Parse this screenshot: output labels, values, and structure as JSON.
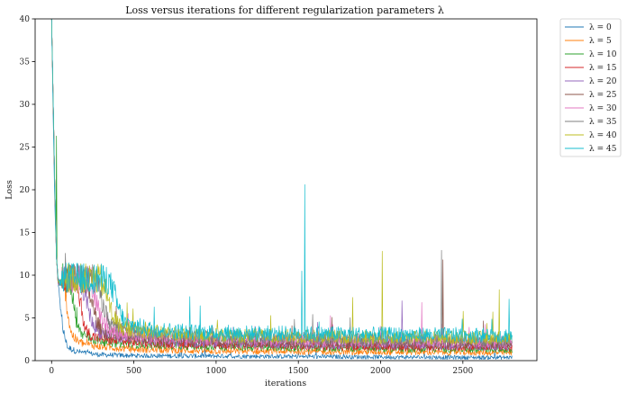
{
  "chart_data": {
    "type": "line",
    "title": "Loss versus iterations for different regularization parameters λ",
    "xlabel": "iterations",
    "ylabel": "Loss",
    "xlim": [
      -100,
      2950
    ],
    "ylim": [
      0,
      40
    ],
    "xticks": [
      0,
      500,
      1000,
      1500,
      2000,
      2500
    ],
    "yticks": [
      0,
      5,
      10,
      15,
      20,
      25,
      30,
      35,
      40
    ],
    "grid": false,
    "legend_position": "outside-top-right",
    "series": [
      {
        "name": "λ = 0",
        "lambda": 0,
        "color": "#1f77b4",
        "points": [
          [
            0,
            40
          ],
          [
            10,
            28
          ],
          [
            20,
            18
          ],
          [
            30,
            12
          ],
          [
            40,
            9
          ],
          [
            50,
            7
          ],
          [
            60,
            5
          ],
          [
            70,
            3.5
          ],
          [
            80,
            2.5
          ],
          [
            100,
            1.4
          ],
          [
            150,
            1.0
          ],
          [
            200,
            0.8
          ],
          [
            300,
            0.6
          ],
          [
            500,
            0.5
          ],
          [
            1000,
            0.45
          ],
          [
            1500,
            0.4
          ],
          [
            2000,
            0.35
          ],
          [
            2500,
            0.3
          ],
          [
            2800,
            0.3
          ]
        ]
      },
      {
        "name": "λ = 5",
        "lambda": 5,
        "color": "#ff7f0e",
        "points": [
          [
            0,
            40
          ],
          [
            10,
            30
          ],
          [
            20,
            20
          ],
          [
            30,
            12
          ],
          [
            40,
            9.2
          ],
          [
            60,
            9.0
          ],
          [
            80,
            8.5
          ],
          [
            100,
            5
          ],
          [
            120,
            3
          ],
          [
            150,
            2.2
          ],
          [
            200,
            1.8
          ],
          [
            300,
            1.5
          ],
          [
            500,
            1.2
          ],
          [
            1000,
            1.0
          ],
          [
            1500,
            0.95
          ],
          [
            2000,
            0.9
          ],
          [
            2500,
            0.85
          ],
          [
            2800,
            0.8
          ]
        ]
      },
      {
        "name": "λ = 10",
        "lambda": 10,
        "color": "#2ca02c",
        "points": [
          [
            0,
            40
          ],
          [
            10,
            30
          ],
          [
            20,
            20
          ],
          [
            30,
            12
          ],
          [
            40,
            9.2
          ],
          [
            100,
            9.0
          ],
          [
            130,
            7
          ],
          [
            150,
            4
          ],
          [
            180,
            3
          ],
          [
            250,
            2.3
          ],
          [
            400,
            1.9
          ],
          [
            600,
            1.7
          ],
          [
            1000,
            1.5
          ],
          [
            1500,
            1.4
          ],
          [
            2000,
            1.3
          ],
          [
            2500,
            1.25
          ],
          [
            2800,
            1.2
          ]
        ]
      },
      {
        "name": "λ = 15",
        "lambda": 15,
        "color": "#d62728",
        "points": [
          [
            0,
            40
          ],
          [
            10,
            30
          ],
          [
            20,
            20
          ],
          [
            30,
            12
          ],
          [
            40,
            9.2
          ],
          [
            140,
            9.0
          ],
          [
            180,
            6
          ],
          [
            200,
            3.5
          ],
          [
            250,
            2.6
          ],
          [
            400,
            2.1
          ],
          [
            600,
            1.9
          ],
          [
            1000,
            1.7
          ],
          [
            1500,
            1.6
          ],
          [
            2000,
            1.5
          ],
          [
            2500,
            1.45
          ],
          [
            2800,
            1.4
          ]
        ]
      },
      {
        "name": "λ = 20",
        "lambda": 20,
        "color": "#9467bd",
        "points": [
          [
            0,
            40
          ],
          [
            10,
            30
          ],
          [
            20,
            20
          ],
          [
            30,
            12
          ],
          [
            40,
            9.2
          ],
          [
            180,
            9.0
          ],
          [
            220,
            6
          ],
          [
            250,
            4
          ],
          [
            300,
            3
          ],
          [
            500,
            2.3
          ],
          [
            800,
            2.0
          ],
          [
            1000,
            1.9
          ],
          [
            1500,
            1.8
          ],
          [
            2000,
            1.7
          ],
          [
            2500,
            1.65
          ],
          [
            2800,
            1.6
          ]
        ]
      },
      {
        "name": "λ = 25",
        "lambda": 25,
        "color": "#8c564b",
        "points": [
          [
            0,
            40
          ],
          [
            10,
            30
          ],
          [
            20,
            20
          ],
          [
            30,
            12
          ],
          [
            40,
            9.2
          ],
          [
            210,
            9.0
          ],
          [
            250,
            6
          ],
          [
            280,
            4
          ],
          [
            330,
            3
          ],
          [
            500,
            2.5
          ],
          [
            800,
            2.2
          ],
          [
            1000,
            2.1
          ],
          [
            1500,
            2.0
          ],
          [
            2000,
            1.9
          ],
          [
            2500,
            1.85
          ],
          [
            2800,
            1.8
          ]
        ]
      },
      {
        "name": "λ = 30",
        "lambda": 30,
        "color": "#e377c2",
        "points": [
          [
            0,
            40
          ],
          [
            10,
            30
          ],
          [
            20,
            20
          ],
          [
            30,
            12
          ],
          [
            40,
            9.2
          ],
          [
            240,
            9.0
          ],
          [
            280,
            6
          ],
          [
            310,
            4.2
          ],
          [
            360,
            3.2
          ],
          [
            500,
            2.7
          ],
          [
            800,
            2.4
          ],
          [
            1000,
            2.3
          ],
          [
            1500,
            2.2
          ],
          [
            2000,
            2.1
          ],
          [
            2500,
            2.05
          ],
          [
            2800,
            2.0
          ]
        ]
      },
      {
        "name": "λ = 35",
        "lambda": 35,
        "color": "#7f7f7f",
        "points": [
          [
            0,
            40
          ],
          [
            10,
            30
          ],
          [
            20,
            20
          ],
          [
            30,
            12
          ],
          [
            40,
            9.2
          ],
          [
            270,
            9.0
          ],
          [
            310,
            6.5
          ],
          [
            340,
            4.5
          ],
          [
            400,
            3.4
          ],
          [
            600,
            2.9
          ],
          [
            800,
            2.6
          ],
          [
            1000,
            2.5
          ],
          [
            1500,
            2.4
          ],
          [
            2000,
            2.3
          ],
          [
            2500,
            2.25
          ],
          [
            2800,
            2.2
          ]
        ]
      },
      {
        "name": "λ = 40",
        "lambda": 40,
        "color": "#bcbd22",
        "points": [
          [
            0,
            40
          ],
          [
            10,
            30
          ],
          [
            20,
            20
          ],
          [
            30,
            12
          ],
          [
            40,
            9.2
          ],
          [
            300,
            9.0
          ],
          [
            340,
            7
          ],
          [
            370,
            5
          ],
          [
            420,
            3.6
          ],
          [
            600,
            3.1
          ],
          [
            800,
            2.8
          ],
          [
            1000,
            2.7
          ],
          [
            1500,
            2.6
          ],
          [
            2000,
            2.5
          ],
          [
            2500,
            2.45
          ],
          [
            2800,
            2.4
          ]
        ]
      },
      {
        "name": "λ = 45",
        "lambda": 45,
        "color": "#17becf",
        "points": [
          [
            0,
            40
          ],
          [
            10,
            30
          ],
          [
            20,
            20
          ],
          [
            30,
            12
          ],
          [
            40,
            9.2
          ],
          [
            340,
            9.0
          ],
          [
            380,
            7.5
          ],
          [
            410,
            5.5
          ],
          [
            450,
            4.0
          ],
          [
            600,
            3.4
          ],
          [
            800,
            3.1
          ],
          [
            1000,
            3.0
          ],
          [
            1500,
            2.9
          ],
          [
            2000,
            2.8
          ],
          [
            2500,
            2.75
          ],
          [
            2800,
            2.7
          ]
        ]
      }
    ],
    "spikes": [
      {
        "series": "λ = 45",
        "x": 1540,
        "y": 20.6
      },
      {
        "series": "λ = 45",
        "x": 1520,
        "y": 10.5
      },
      {
        "series": "λ = 45",
        "x": 840,
        "y": 7.5
      },
      {
        "series": "λ = 40",
        "x": 2010,
        "y": 12.8
      },
      {
        "series": "λ = 40",
        "x": 1830,
        "y": 7.4
      },
      {
        "series": "λ = 40",
        "x": 2720,
        "y": 8.3
      },
      {
        "series": "λ = 35",
        "x": 2370,
        "y": 12.9
      },
      {
        "series": "λ = 30",
        "x": 2250,
        "y": 6.8
      },
      {
        "series": "λ = 25",
        "x": 2380,
        "y": 11.8
      },
      {
        "series": "λ = 20",
        "x": 2130,
        "y": 7.0
      },
      {
        "series": "λ = 45",
        "x": 2780,
        "y": 7.2
      },
      {
        "series": "λ = 10",
        "x": 30,
        "y": 26.3
      }
    ]
  }
}
